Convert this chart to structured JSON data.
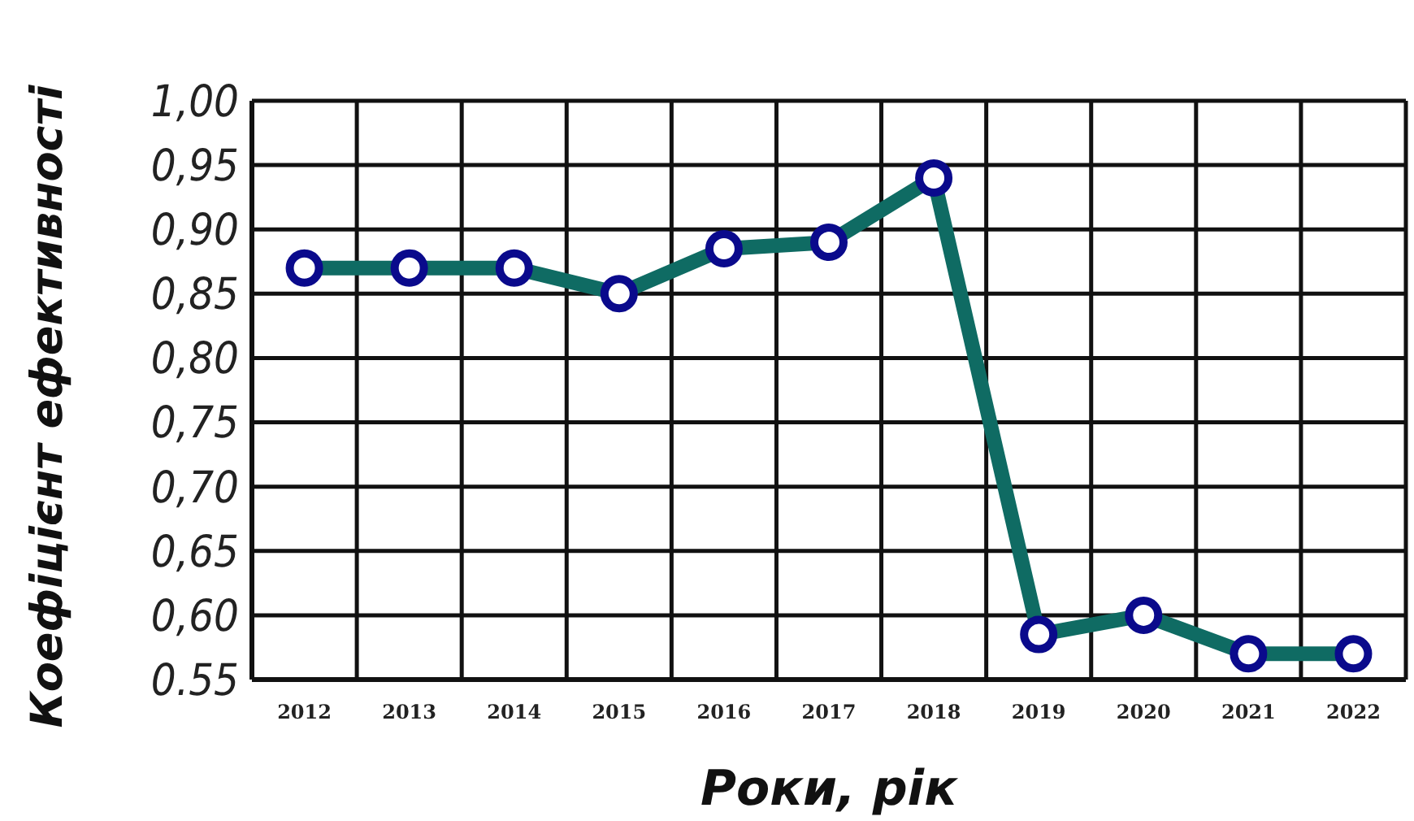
{
  "chart_data": {
    "type": "line",
    "xlabel": "Роки, рік",
    "ylabel": "Коефіцієнт ефективності",
    "categories": [
      "2012",
      "2013",
      "2014",
      "2015",
      "2016",
      "2017",
      "2018",
      "2019",
      "2020",
      "2021",
      "2022"
    ],
    "series": [
      {
        "color": "#0f6b63",
        "values": [
          0.87,
          0.87,
          0.87,
          0.85,
          0.885,
          0.89,
          0.94,
          0.585,
          0.6,
          0.57,
          0.57
        ]
      }
    ],
    "ylim": [
      0.55,
      1.0
    ],
    "yticks": [
      {
        "value": 0.55,
        "label": "0.55"
      },
      {
        "value": 0.6,
        "label": "0,60"
      },
      {
        "value": 0.65,
        "label": "0,65"
      },
      {
        "value": 0.7,
        "label": "0,70"
      },
      {
        "value": 0.75,
        "label": "0,75"
      },
      {
        "value": 0.8,
        "label": "0,80"
      },
      {
        "value": 0.85,
        "label": "0,85"
      },
      {
        "value": 0.9,
        "label": "0,90"
      },
      {
        "value": 0.95,
        "label": "0,95"
      },
      {
        "value": 1.0,
        "label": "1,00"
      }
    ],
    "grid": true,
    "marker": "circle",
    "line_style": "solid"
  }
}
